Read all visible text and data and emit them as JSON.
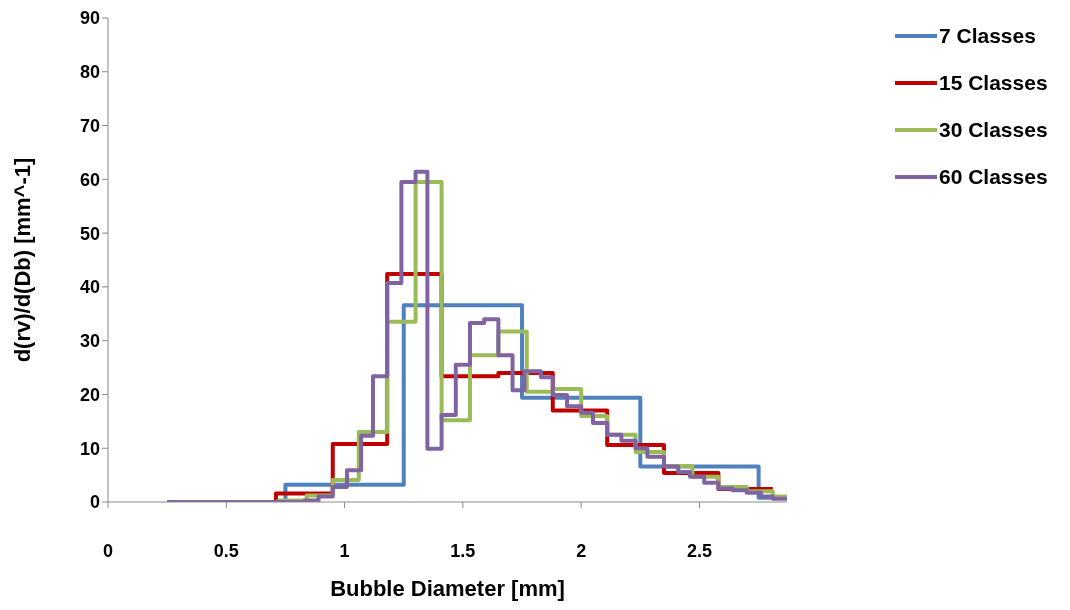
{
  "chart_data": {
    "type": "step",
    "xlabel": "Bubble Diameter [mm]",
    "ylabel": "d(rv)/d(Db) [mm^-1]",
    "xlim": [
      0,
      2.87
    ],
    "xticks": [
      0,
      0.5,
      1,
      1.5,
      2,
      2.5
    ],
    "ylim": [
      0,
      90
    ],
    "yticks": [
      0,
      10,
      20,
      30,
      40,
      50,
      60,
      70,
      80,
      90
    ],
    "grid": false,
    "legend": "top right",
    "marker": "none",
    "line_style": "solid",
    "series": [
      {
        "name": "7 Classes",
        "color": "#4f81bd",
        "x": [
          0.25,
          0.75,
          1.25,
          1.75,
          2.25,
          2.75,
          2.87
        ],
        "values": [
          0,
          3.2,
          36.6,
          19.4,
          6.6,
          0.8,
          0.8
        ]
      },
      {
        "name": "15 Classes",
        "color": "#c00000",
        "x": [
          0.25,
          0.71,
          0.95,
          1.18,
          1.41,
          1.65,
          1.88,
          2.11,
          2.35,
          2.58,
          2.81
        ],
        "values": [
          0,
          1.6,
          10.8,
          42.4,
          23.4,
          24.0,
          17.0,
          10.6,
          5.4,
          2.4,
          2.4
        ]
      },
      {
        "name": "30 Classes",
        "color": "#9bbb59",
        "x": [
          0.25,
          0.72,
          0.84,
          0.95,
          1.06,
          1.18,
          1.3,
          1.41,
          1.53,
          1.65,
          1.77,
          1.88,
          2.0,
          2.11,
          2.23,
          2.35,
          2.47,
          2.58,
          2.7,
          2.81,
          2.87
        ],
        "values": [
          0,
          0.3,
          1.2,
          4.1,
          13.0,
          33.5,
          59.5,
          15.2,
          27.3,
          31.7,
          20.5,
          21.0,
          16.0,
          12.5,
          9.3,
          6.7,
          4.7,
          2.8,
          2.0,
          1.0,
          1.0
        ]
      },
      {
        "name": "60 Classes",
        "color": "#8064a2",
        "x": [
          0.25,
          0.83,
          0.89,
          0.95,
          1.01,
          1.07,
          1.12,
          1.18,
          1.24,
          1.3,
          1.35,
          1.41,
          1.47,
          1.53,
          1.59,
          1.65,
          1.71,
          1.76,
          1.83,
          1.88,
          1.94,
          2.0,
          2.05,
          2.11,
          2.17,
          2.23,
          2.28,
          2.35,
          2.41,
          2.46,
          2.52,
          2.58,
          2.64,
          2.7,
          2.76,
          2.81,
          2.87
        ],
        "values": [
          0,
          0.3,
          1.0,
          2.8,
          5.9,
          12.3,
          23.4,
          40.7,
          59.5,
          61.4,
          9.9,
          16.2,
          25.5,
          33.3,
          34.0,
          27.3,
          20.8,
          24.3,
          23.2,
          19.9,
          17.8,
          16.6,
          14.7,
          12.5,
          11.4,
          10.0,
          8.4,
          6.6,
          5.6,
          4.7,
          3.6,
          2.5,
          2.2,
          1.7,
          1.0,
          0.6,
          0.6
        ]
      }
    ]
  }
}
